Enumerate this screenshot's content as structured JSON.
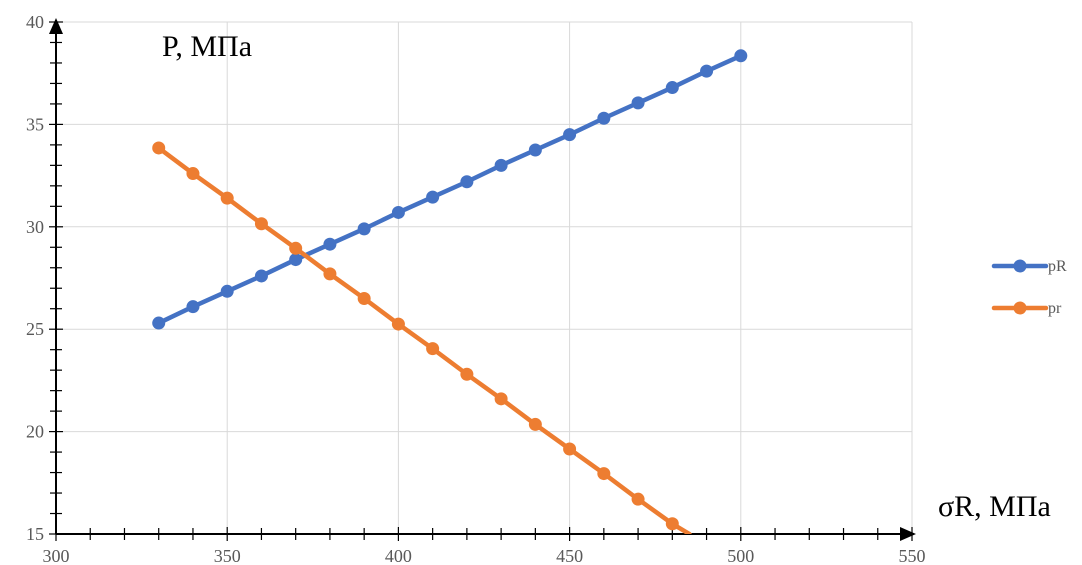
{
  "chart_data": {
    "type": "line",
    "xlabel": "σR, МПа",
    "ylabel": "P, МПа",
    "xlim": [
      300,
      550
    ],
    "ylim": [
      15,
      40
    ],
    "x_ticks": [
      300,
      350,
      400,
      450,
      500,
      550
    ],
    "y_ticks": [
      15,
      20,
      25,
      30,
      35,
      40
    ],
    "grid": true,
    "legend_position": "right",
    "series": [
      {
        "name": "pR",
        "color": "#4472C4",
        "x": [
          330,
          340,
          350,
          360,
          370,
          380,
          390,
          400,
          410,
          420,
          430,
          440,
          450,
          460,
          470,
          480,
          490,
          500
        ],
        "y": [
          25.3,
          26.1,
          26.85,
          27.6,
          28.4,
          29.15,
          29.9,
          30.7,
          31.45,
          32.2,
          33.0,
          33.75,
          34.5,
          35.3,
          36.05,
          36.8,
          37.6,
          38.35
        ]
      },
      {
        "name": "pr",
        "color": "#ED7D31",
        "x": [
          330,
          340,
          350,
          360,
          370,
          380,
          390,
          400,
          410,
          420,
          430,
          440,
          450,
          460,
          470,
          480,
          485
        ],
        "y": [
          33.85,
          32.6,
          31.4,
          30.15,
          28.95,
          27.7,
          26.5,
          25.25,
          24.05,
          22.8,
          21.6,
          20.35,
          19.15,
          17.95,
          16.7,
          15.5,
          15.0
        ]
      }
    ]
  }
}
